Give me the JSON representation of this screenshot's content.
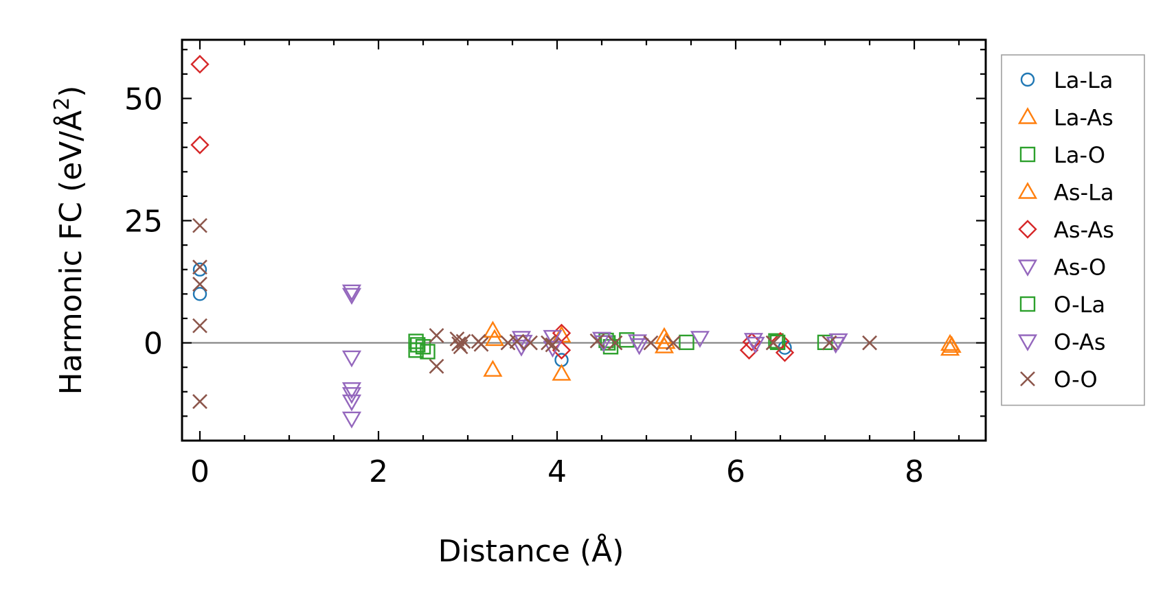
{
  "chart_data": {
    "type": "scatter",
    "xlabel": "Distance (Å)",
    "ylabel": "Harmonic FC (eV/Å²)",
    "ylabel_base": "Harmonic FC (eV/Å",
    "ylabel_sup": "2",
    "ylabel_close": ")",
    "xlim": [
      -0.2,
      8.8
    ],
    "ylim": [
      -20,
      62
    ],
    "x_ticks": [
      0,
      2,
      4,
      6,
      8
    ],
    "x_tick_labels": [
      "0",
      "2",
      "4",
      "6",
      "8"
    ],
    "y_ticks": [
      0,
      25,
      50
    ],
    "y_tick_labels": [
      "0",
      "25",
      "50"
    ],
    "x_minor_step": 0.5,
    "y_minor_step": 5,
    "zero_line": true,
    "grid": false,
    "legend_placement": "outside-right",
    "series": [
      {
        "name": "La-La",
        "marker": "circle",
        "color": "#1f77b4",
        "points": [
          [
            0,
            15
          ],
          [
            0,
            10
          ],
          [
            4.05,
            -3.5
          ],
          [
            6.55,
            -1
          ]
        ]
      },
      {
        "name": "La-As",
        "marker": "triangle-up",
        "color": "#ff7f0e",
        "points": [
          [
            3.28,
            2.5
          ],
          [
            3.28,
            -5.5
          ],
          [
            4.05,
            -6.3
          ],
          [
            4.05,
            1.5
          ],
          [
            5.2,
            1.2
          ],
          [
            5.2,
            -0.7
          ],
          [
            8.4,
            -0.2
          ],
          [
            8.4,
            -1.2
          ]
        ]
      },
      {
        "name": "La-O",
        "marker": "square",
        "color": "#2ca02c",
        "points": [
          [
            2.42,
            0.3
          ],
          [
            2.42,
            -1.5
          ],
          [
            2.5,
            -0.8
          ],
          [
            2.55,
            -1.8
          ],
          [
            4.55,
            0.5
          ],
          [
            4.6,
            -0.8
          ],
          [
            4.78,
            0.6
          ],
          [
            5.45,
            0.1
          ],
          [
            6.45,
            0.4
          ],
          [
            7.0,
            0.1
          ]
        ]
      },
      {
        "name": "As-La",
        "marker": "triangle-up",
        "color": "#ff7f0e",
        "points": [
          [
            3.3,
            0.8
          ],
          [
            5.22,
            0.2
          ],
          [
            8.42,
            -0.6
          ]
        ]
      },
      {
        "name": "As-As",
        "marker": "diamond",
        "color": "#d62728",
        "points": [
          [
            0,
            57
          ],
          [
            0,
            40.5
          ],
          [
            4.05,
            2.0
          ],
          [
            4.05,
            -1.5
          ],
          [
            6.15,
            -1.5
          ],
          [
            6.18,
            0.2
          ],
          [
            6.55,
            -2.0
          ],
          [
            6.5,
            0.3
          ]
        ]
      },
      {
        "name": "As-O",
        "marker": "triangle-down",
        "color": "#9467bd",
        "points": [
          [
            1.7,
            10.5
          ],
          [
            1.7,
            9.8
          ],
          [
            1.7,
            -3.0
          ],
          [
            1.7,
            -9.5
          ],
          [
            1.7,
            -10.5
          ],
          [
            1.7,
            -12.0
          ],
          [
            1.7,
            -15.5
          ],
          [
            3.6,
            1.0
          ],
          [
            3.6,
            -0.8
          ],
          [
            3.95,
            1.2
          ],
          [
            3.95,
            -1.0
          ],
          [
            4.5,
            0.8
          ],
          [
            4.92,
            -0.5
          ],
          [
            5.6,
            1.0
          ],
          [
            6.2,
            0.6
          ],
          [
            7.15,
            0.5
          ]
        ]
      },
      {
        "name": "O-La",
        "marker": "square",
        "color": "#2ca02c",
        "points": [
          [
            2.44,
            -0.4
          ],
          [
            4.57,
            0.0
          ],
          [
            6.47,
            0.1
          ]
        ]
      },
      {
        "name": "O-As",
        "marker": "triangle-down",
        "color": "#9467bd",
        "points": [
          [
            3.62,
            0.2
          ],
          [
            4.52,
            0.1
          ],
          [
            4.9,
            0.3
          ],
          [
            6.22,
            -0.2
          ],
          [
            7.12,
            -0.2
          ]
        ]
      },
      {
        "name": "O-O",
        "marker": "x",
        "color": "#8c564b",
        "points": [
          [
            0,
            24
          ],
          [
            0,
            15.5
          ],
          [
            0,
            12
          ],
          [
            0,
            3.5
          ],
          [
            0,
            -12
          ],
          [
            2.65,
            1.5
          ],
          [
            2.65,
            -4.8
          ],
          [
            2.88,
            0.8
          ],
          [
            2.9,
            -0.2
          ],
          [
            2.92,
            -0.8
          ],
          [
            2.95,
            0.3
          ],
          [
            3.12,
            0.3
          ],
          [
            3.15,
            -0.3
          ],
          [
            3.45,
            0.0
          ],
          [
            3.55,
            0.3
          ],
          [
            3.7,
            0.0
          ],
          [
            3.9,
            0.0
          ],
          [
            3.95,
            -0.4
          ],
          [
            4.45,
            0.4
          ],
          [
            4.65,
            0.0
          ],
          [
            5.05,
            0.0
          ],
          [
            5.3,
            0.0
          ],
          [
            6.42,
            0.0
          ],
          [
            7.05,
            0.0
          ],
          [
            7.5,
            0.0
          ]
        ]
      }
    ]
  }
}
